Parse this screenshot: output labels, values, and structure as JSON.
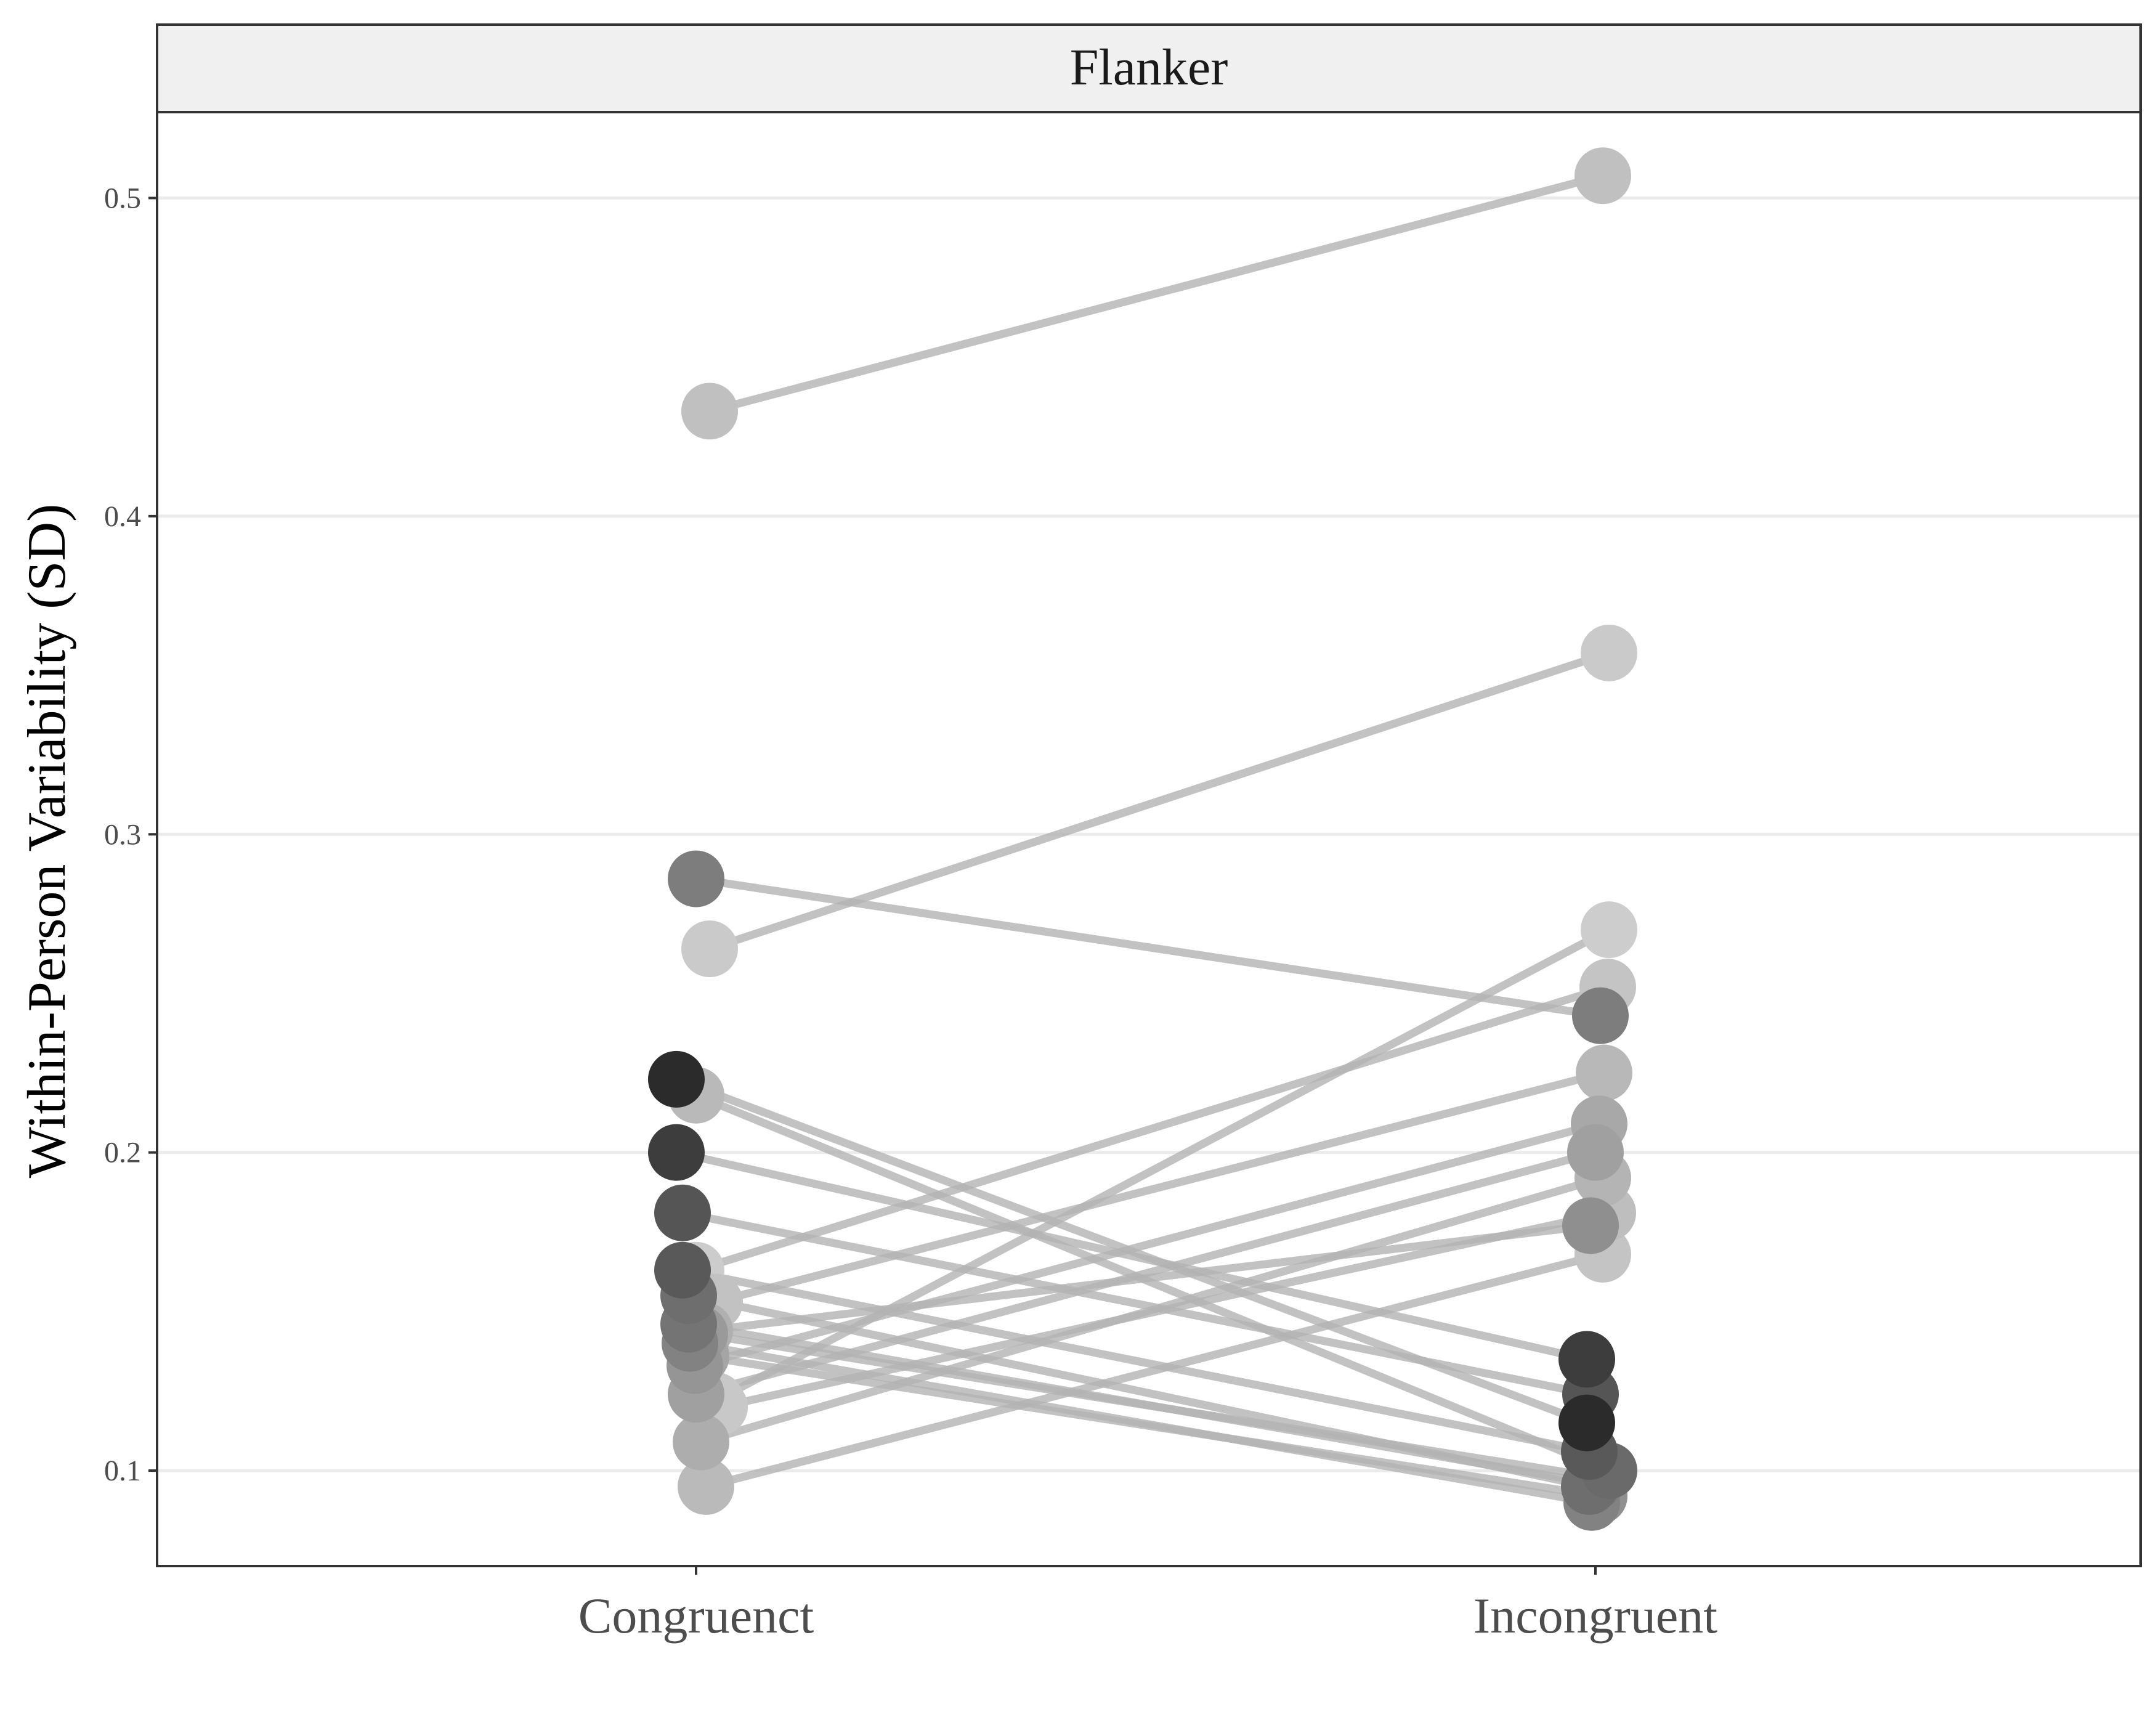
{
  "chart_data": {
    "type": "line",
    "panel_title": "Flanker",
    "ylabel": "Within-Person Variability  (SD)",
    "xlabel": "",
    "categories": [
      "Congruenct",
      "Incongruent"
    ],
    "ylim": [
      0.07,
      0.527
    ],
    "yticks": [
      0.1,
      0.2,
      0.3,
      0.4,
      0.5
    ],
    "ytick_labels": [
      "0.1",
      "0.2",
      "0.3",
      "0.4",
      "0.5"
    ],
    "grid": "horizontal",
    "legend": "none",
    "colors": {
      "line": "#b3b3b3",
      "panel_border": "#333333",
      "strip_fill": "#f0f0f0",
      "grid": "#ebebeb"
    },
    "subjects": [
      {
        "values": [
          0.433,
          0.507
        ],
        "shades": [
          "#c0c0c0",
          "#c0c0c0"
        ]
      },
      {
        "values": [
          0.264,
          0.357
        ],
        "shades": [
          "#cacaca",
          "#cacaca"
        ]
      },
      {
        "values": [
          0.286,
          0.243
        ],
        "shades": [
          "#7d7d7d",
          "#7d7d7d"
        ]
      },
      {
        "values": [
          0.122,
          0.27
        ],
        "shades": [
          "#c8c8c8",
          "#cdcdcd"
        ]
      },
      {
        "values": [
          0.218,
          0.1
        ],
        "shades": [
          "#b9b9b9",
          "#6a6a6a"
        ]
      },
      {
        "values": [
          0.163,
          0.252
        ],
        "shades": [
          "#cccccc",
          "#c4c4c4"
        ]
      },
      {
        "values": [
          0.223,
          0.115
        ],
        "shades": [
          "#2b2b2b",
          "#2b2b2b"
        ]
      },
      {
        "values": [
          0.2,
          0.135
        ],
        "shades": [
          "#3d3d3d",
          "#3d3d3d"
        ]
      },
      {
        "values": [
          0.181,
          0.124
        ],
        "shades": [
          "#555555",
          "#555555"
        ]
      },
      {
        "values": [
          0.163,
          0.106
        ],
        "shades": [
          "#595959",
          "#595959"
        ]
      },
      {
        "values": [
          0.155,
          0.095
        ],
        "shades": [
          "#6e6e6e",
          "#6e6e6e"
        ]
      },
      {
        "values": [
          0.146,
          0.096
        ],
        "shades": [
          "#747474",
          "#747474"
        ]
      },
      {
        "values": [
          0.14,
          0.09
        ],
        "shades": [
          "#828282",
          "#828282"
        ]
      },
      {
        "values": [
          0.133,
          0.209
        ],
        "shades": [
          "#959595",
          "#a8a8a8"
        ]
      },
      {
        "values": [
          0.124,
          0.2
        ],
        "shades": [
          "#a0a0a0",
          "#a0a0a0"
        ]
      },
      {
        "values": [
          0.109,
          0.192
        ],
        "shades": [
          "#adadad",
          "#b4b4b4"
        ]
      },
      {
        "values": [
          0.095,
          0.168
        ],
        "shades": [
          "#bababa",
          "#c4c4c4"
        ]
      },
      {
        "values": [
          0.153,
          0.225
        ],
        "shades": [
          "#c2c2c2",
          "#b8b8b8"
        ]
      },
      {
        "values": [
          0.12,
          0.181
        ],
        "shades": [
          "#c8c8c8",
          "#bebebe"
        ]
      },
      {
        "values": [
          0.144,
          0.177
        ],
        "shades": [
          "#b0b0b0",
          "#8f8f8f"
        ]
      },
      {
        "values": [
          0.143,
          0.098
        ],
        "shades": [
          "#9a9a9a",
          "#8a8a8a"
        ]
      },
      {
        "values": [
          0.136,
          0.092
        ],
        "shades": [
          "#a5a5a5",
          "#909090"
        ]
      }
    ]
  }
}
